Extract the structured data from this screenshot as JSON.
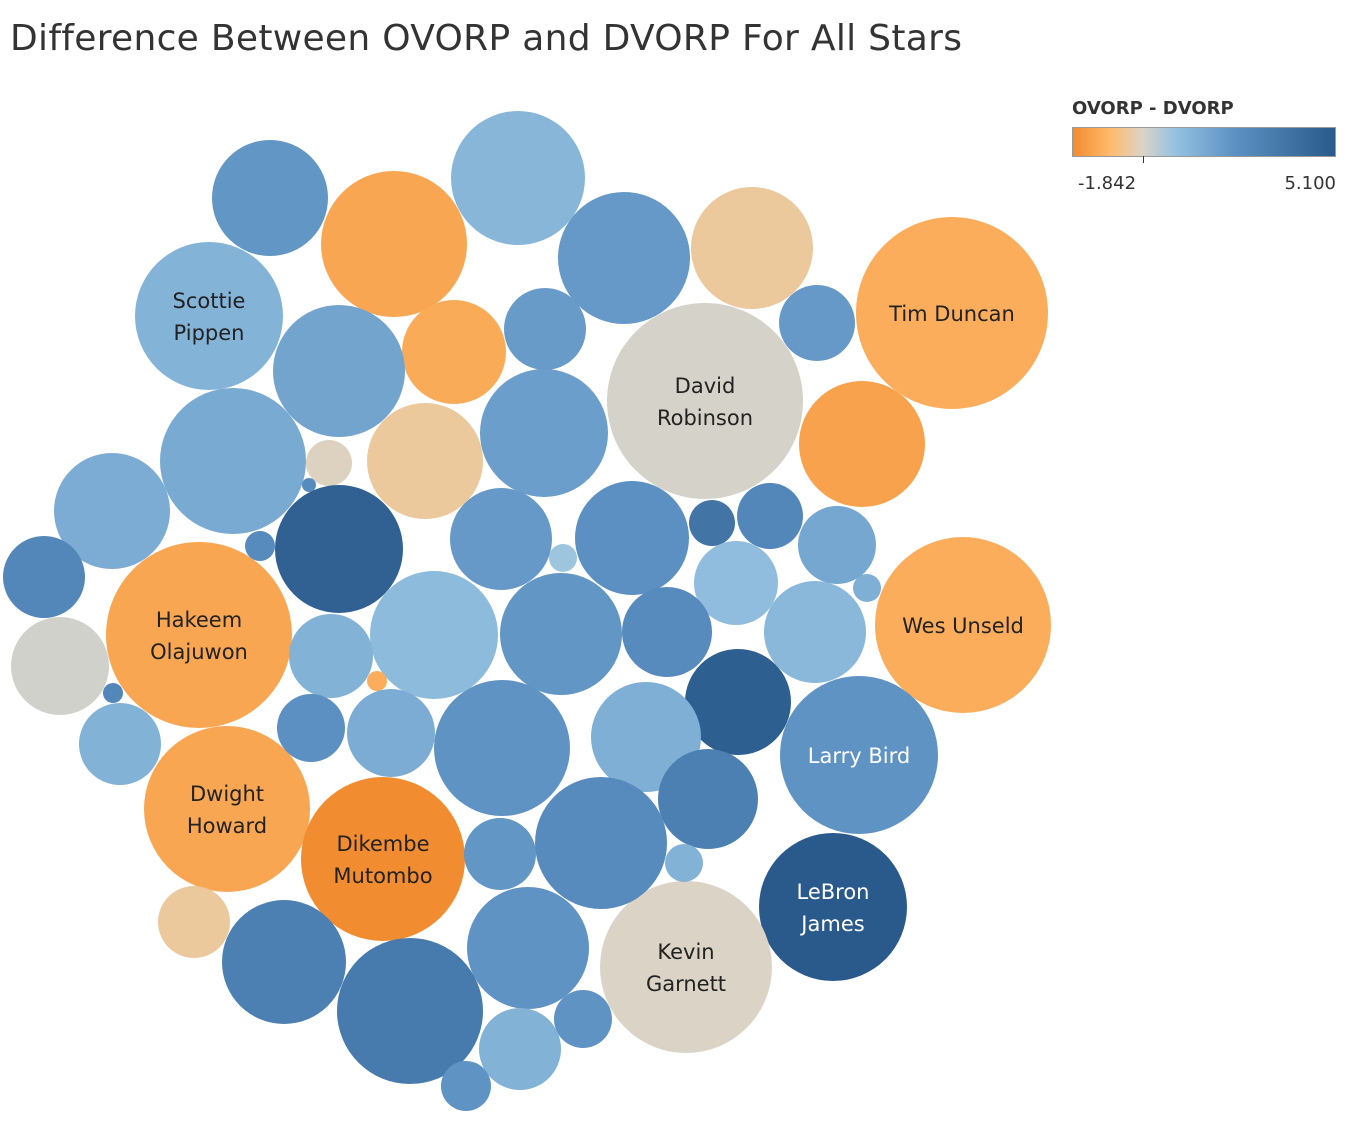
{
  "chart_data": {
    "type": "packed-bubble",
    "title": "Difference Between OVORP and DVORP For All Stars",
    "legend": {
      "title": "OVORP - DVORP",
      "min_label": "-1.842",
      "max_label": "5.100",
      "min": -1.842,
      "max": 5.1,
      "placement": "top-right",
      "colors": [
        "#f28c30",
        "#ffbb6e",
        "#dbd4c6",
        "#96c3e1",
        "#5c90c2",
        "#2a5a8c"
      ]
    },
    "bubbles": [
      {
        "label": "Scottie Pippen",
        "lines": [
          "Scottie",
          "Pippen"
        ],
        "value": 1.55
      },
      {
        "label": "Tim Duncan",
        "lines": [
          "Tim Duncan"
        ],
        "value": -1.05
      },
      {
        "label": "David Robinson",
        "lines": [
          "David",
          "Robinson"
        ],
        "value": 0.15
      },
      {
        "label": "Hakeem Olajuwon",
        "lines": [
          "Hakeem",
          "Olajuwon"
        ],
        "value": -1.2
      },
      {
        "label": "Wes Unseld",
        "lines": [
          "Wes Unseld"
        ],
        "value": -1.05
      },
      {
        "label": "Larry Bird",
        "lines": [
          "Larry Bird"
        ],
        "value": 2.7
      },
      {
        "label": "Dwight Howard",
        "lines": [
          "Dwight",
          "Howard"
        ],
        "value": -1.2
      },
      {
        "label": "Dikembe Mutombo",
        "lines": [
          "Dikembe",
          "Mutombo"
        ],
        "value": -1.84
      },
      {
        "label": "LeBron James",
        "lines": [
          "LeBron",
          "James"
        ],
        "value": 5.1
      },
      {
        "label": "Kevin Garnett",
        "lines": [
          "Kevin",
          "Garnett"
        ],
        "value": 0.05
      },
      {
        "label": "",
        "value": 2.6
      },
      {
        "label": "",
        "value": -1.2
      },
      {
        "label": "",
        "value": 1.45
      },
      {
        "label": "",
        "value": 2.5
      },
      {
        "label": "",
        "value": -0.3
      },
      {
        "label": "",
        "value": 2.4
      },
      {
        "label": "",
        "value": -1.1
      },
      {
        "label": "",
        "value": 2.1
      },
      {
        "label": "",
        "value": 2.5
      },
      {
        "label": "",
        "value": 1.9
      },
      {
        "label": "",
        "value": -1.3
      },
      {
        "label": "",
        "value": 2.3
      },
      {
        "label": "",
        "value": -0.3
      },
      {
        "label": "",
        "value": 0.0
      },
      {
        "label": "",
        "value": 3.0
      },
      {
        "label": "",
        "value": 1.8
      },
      {
        "label": "",
        "value": 4.8
      },
      {
        "label": "",
        "value": 3.0
      },
      {
        "label": "",
        "value": 2.5
      },
      {
        "label": "",
        "value": 0.9
      },
      {
        "label": "",
        "value": 2.8
      },
      {
        "label": "",
        "value": 4.0
      },
      {
        "label": "",
        "value": 3.2
      },
      {
        "label": "",
        "value": 2.0
      },
      {
        "label": "",
        "value": 3.2
      },
      {
        "label": "",
        "value": 1.2
      },
      {
        "label": "",
        "value": 1.7
      },
      {
        "label": "",
        "value": 1.3
      },
      {
        "label": "",
        "value": 2.6
      },
      {
        "label": "",
        "value": 3.0
      },
      {
        "label": "",
        "value": 1.4
      },
      {
        "label": "",
        "value": 0.2
      },
      {
        "label": "",
        "value": 1.6
      },
      {
        "label": "",
        "value": -1.05
      },
      {
        "label": "",
        "value": 3.2
      },
      {
        "label": "",
        "value": 4.9
      },
      {
        "label": "",
        "value": 2.8
      },
      {
        "label": "",
        "value": 1.8
      },
      {
        "label": "",
        "value": 2.7
      },
      {
        "label": "",
        "value": 1.7
      },
      {
        "label": "",
        "value": 1.6
      },
      {
        "label": "",
        "value": 3.5
      },
      {
        "label": "",
        "value": 2.6
      },
      {
        "label": "",
        "value": 3.0
      },
      {
        "label": "",
        "value": 1.6
      },
      {
        "label": "",
        "value": -0.3
      },
      {
        "label": "",
        "value": 3.5
      },
      {
        "label": "",
        "value": 2.7
      },
      {
        "label": "",
        "value": 3.7
      },
      {
        "label": "",
        "value": 2.7
      },
      {
        "label": "",
        "value": 1.6
      },
      {
        "label": "",
        "value": 2.7
      },
      {
        "label": "",
        "value": 2.3
      },
      {
        "label": "",
        "value": 4.2
      },
      {
        "label": "",
        "value": 2.6
      },
      {
        "label": "",
        "value": 2.7
      },
      {
        "label": "",
        "value": 1.0
      }
    ]
  }
}
